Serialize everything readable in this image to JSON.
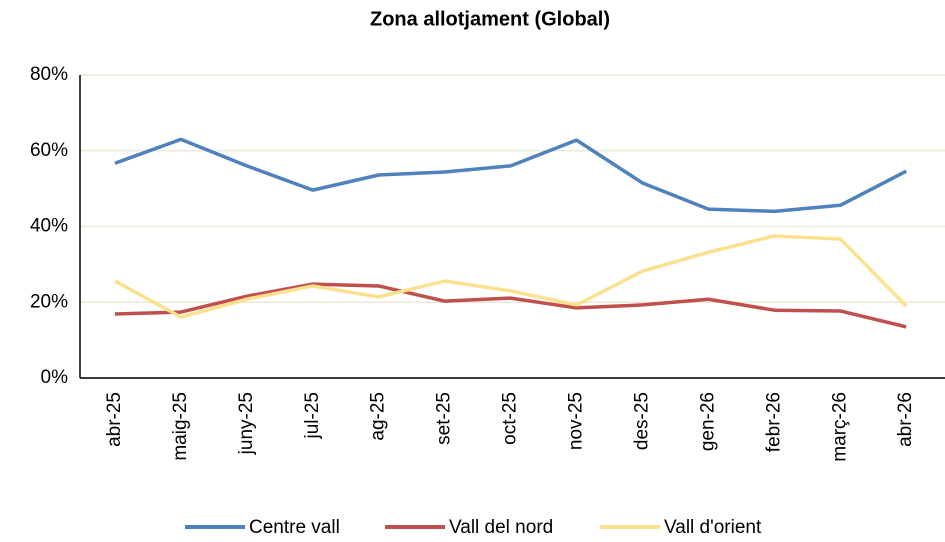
{
  "chart_data": {
    "type": "line",
    "title": "Zona allotjament (Global)",
    "categories": [
      "abr-25",
      "maig-25",
      "juny-25",
      "jul-25",
      "ag-25",
      "set-25",
      "oct-25",
      "nov-25",
      "des-25",
      "gen-26",
      "febr-26",
      "març-26",
      "abr-26"
    ],
    "series": [
      {
        "name": "Centre vall",
        "color": "#4f81bd",
        "values": [
          56.7,
          63,
          56,
          49.6,
          53.6,
          54.4,
          56,
          62.8,
          51.5,
          44.6,
          44,
          45.6,
          54.6
        ]
      },
      {
        "name": "Vall del nord",
        "color": "#c0504d",
        "values": [
          16.9,
          17.4,
          21.6,
          24.8,
          24.3,
          20.3,
          21.1,
          18.5,
          19.3,
          20.8,
          17.9,
          17.7,
          13.5
        ]
      },
      {
        "name": "Vall d'orient",
        "color": "#fbe08e",
        "values": [
          25.6,
          16.1,
          20.8,
          24.3,
          21.4,
          25.6,
          23,
          19.3,
          28.2,
          33.2,
          37.5,
          36.7,
          19
        ]
      }
    ],
    "ylim": [
      0,
      80
    ],
    "yticks": [
      {
        "value": 0,
        "label": "0%"
      },
      {
        "value": 20,
        "label": "20%"
      },
      {
        "value": 40,
        "label": "40%"
      },
      {
        "value": 60,
        "label": "60%"
      },
      {
        "value": 80,
        "label": "80%"
      }
    ],
    "grid": true
  }
}
